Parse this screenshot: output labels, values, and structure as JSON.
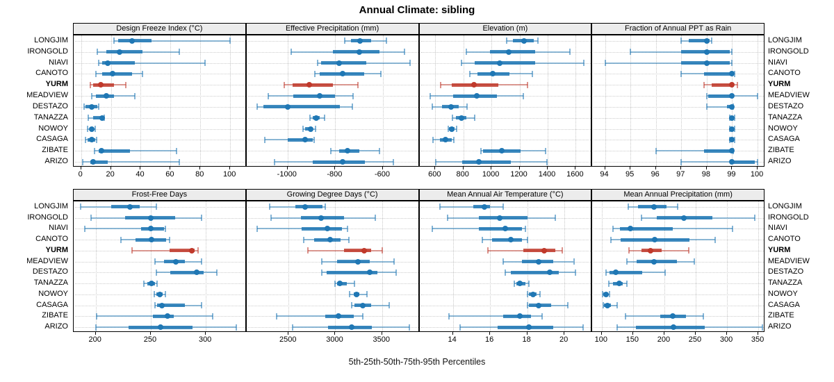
{
  "title": "Annual Climate: sibling",
  "caption": "5th-25th-50th-75th-95th Percentiles",
  "chart_data": {
    "type": "scatter",
    "subtype": "trellis of horizontal percentile interval plots (thin line = 5th-95th, thick line = 25th-75th, dot = median)",
    "title": "Annual Climate: sibling",
    "xlabel": "5th-25th-50th-75th-95th Percentiles",
    "legend_position": "none",
    "grid": "dotted",
    "percentile_labels": [
      "5th",
      "25th",
      "50th",
      "75th",
      "95th"
    ],
    "sites": [
      "LONGJIM",
      "IRONGOLD",
      "NIAVI",
      "CANOTO",
      "YURM",
      "MEADVIEW",
      "DESTAZO",
      "TANAZZA",
      "NOWOY",
      "CASAGA",
      "ZIBATE",
      "ARIZO"
    ],
    "highlight_site": "YURM",
    "colors": {
      "series": "#1f77b4",
      "highlight": "#c0392b",
      "strip_bg": "#ececec",
      "grid": "#c9c9c9",
      "panel_border": "#000000"
    },
    "panels": [
      {
        "title": "Design Freeze Index (°C)",
        "xlim": [
          -5,
          111
        ],
        "ticks": [
          0,
          20,
          40,
          60,
          80,
          100
        ],
        "values": [
          [
            22,
            25,
            34,
            47,
            100
          ],
          [
            11,
            17,
            26,
            41,
            66
          ],
          [
            12,
            14,
            18,
            36,
            83
          ],
          [
            10,
            14,
            21,
            34,
            41
          ],
          [
            6,
            8,
            13,
            22,
            30
          ],
          [
            7,
            10,
            17,
            22,
            36
          ],
          [
            2,
            3,
            7,
            11,
            12
          ],
          [
            5,
            8,
            14,
            15,
            15.5
          ],
          [
            4.5,
            5.5,
            7,
            8.5,
            9.5
          ],
          [
            3,
            4.5,
            7,
            9.5,
            10.5
          ],
          [
            9,
            12,
            13.5,
            33,
            64
          ],
          [
            1,
            6,
            8,
            18,
            66
          ]
        ]
      },
      {
        "title": "Effective Precipitation (mm)",
        "xlim": [
          -1172,
          -447
        ],
        "ticks": [
          -1000,
          -800,
          -600
        ],
        "values": [
          [
            -760,
            -735,
            -695,
            -650,
            -585
          ],
          [
            -985,
            -810,
            -700,
            -615,
            -510
          ],
          [
            -875,
            -860,
            -785,
            -670,
            -487
          ],
          [
            -885,
            -865,
            -770,
            -680,
            -610
          ],
          [
            -1015,
            -980,
            -910,
            -810,
            -705
          ],
          [
            -1080,
            -975,
            -865,
            -800,
            -725
          ],
          [
            -1127,
            -1100,
            -1000,
            -781,
            -728
          ],
          [
            -905,
            -895,
            -880,
            -865,
            -845
          ],
          [
            -936,
            -925,
            -904,
            -893,
            -883
          ],
          [
            -1095,
            -1000,
            -925,
            -895,
            -888
          ],
          [
            -820,
            -785,
            -750,
            -700,
            -615
          ],
          [
            -1055,
            -895,
            -770,
            -675,
            -555
          ]
        ]
      },
      {
        "title": "Elevation (m)",
        "xlim": [
          487,
          1718
        ],
        "ticks": [
          600,
          800,
          1000,
          1200,
          1400,
          1600
        ],
        "values": [
          [
            1110,
            1155,
            1230,
            1300,
            1330
          ],
          [
            820,
            990,
            1125,
            1310,
            1560
          ],
          [
            785,
            880,
            1060,
            1310,
            1655
          ],
          [
            845,
            900,
            1010,
            1130,
            1290
          ],
          [
            640,
            715,
            875,
            1050,
            1255
          ],
          [
            565,
            725,
            895,
            1040,
            1225
          ],
          [
            580,
            650,
            710,
            765,
            825
          ],
          [
            723,
            748,
            788,
            820,
            878
          ],
          [
            690,
            698,
            718,
            739,
            752
          ],
          [
            584,
            633,
            674,
            715,
            731
          ],
          [
            925,
            940,
            1075,
            1205,
            1385
          ],
          [
            605,
            790,
            910,
            1140,
            1395
          ]
        ]
      },
      {
        "title": "Fraction of Annual PPT as Rain",
        "xlim": [
          93.5,
          100.3
        ],
        "ticks": [
          94,
          95,
          96,
          97,
          98,
          99,
          100
        ],
        "values": [
          [
            97,
            97.3,
            98,
            98.1,
            98.2
          ],
          [
            95,
            97,
            98,
            98.9,
            99
          ],
          [
            94,
            97,
            98,
            98.9,
            99
          ],
          [
            97,
            97.9,
            99,
            99,
            99.1
          ],
          [
            97.9,
            98.2,
            99,
            99.05,
            99.2
          ],
          [
            98,
            98.05,
            99,
            99.05,
            100
          ],
          [
            98,
            98.8,
            99,
            99,
            99.05
          ],
          [
            98.9,
            99,
            99,
            99,
            99.1
          ],
          [
            98.9,
            99,
            99,
            99,
            99.1
          ],
          [
            98.9,
            99,
            99,
            99,
            99.1
          ],
          [
            96,
            97.9,
            99,
            99,
            99.05
          ],
          [
            97,
            98.9,
            99,
            99.9,
            100
          ]
        ]
      },
      {
        "title": "Frost-Free Days",
        "xlim": [
          180,
          337
        ],
        "ticks": [
          200,
          250,
          300
        ],
        "values": [
          [
            186,
            214,
            231,
            240,
            255
          ],
          [
            196,
            227,
            250,
            272,
            296
          ],
          [
            190,
            241,
            250,
            262,
            263
          ],
          [
            223,
            236,
            251,
            264,
            267
          ],
          [
            233,
            267,
            287,
            290,
            293
          ],
          [
            254,
            262,
            273,
            281,
            296
          ],
          [
            255,
            268,
            292,
            298,
            310
          ],
          [
            244,
            247,
            251,
            254,
            256
          ],
          [
            253,
            255,
            258,
            261,
            263
          ],
          [
            254,
            256,
            260,
            281,
            296
          ],
          [
            201,
            252,
            265,
            271,
            306
          ],
          [
            200,
            230,
            259,
            288,
            328
          ]
        ]
      },
      {
        "title": "Growing Degree Days (°C)",
        "xlim": [
          2050,
          3900
        ],
        "ticks": [
          2500,
          3000,
          3500
        ],
        "values": [
          [
            2300,
            2575,
            2680,
            2860,
            2890
          ],
          [
            2315,
            2630,
            2845,
            3095,
            3430
          ],
          [
            2165,
            2640,
            2915,
            3070,
            3130
          ],
          [
            2665,
            2775,
            2945,
            3055,
            3145
          ],
          [
            2705,
            3095,
            3310,
            3380,
            3505
          ],
          [
            2855,
            3020,
            3245,
            3365,
            3630
          ],
          [
            2855,
            2910,
            3365,
            3450,
            3650
          ],
          [
            3000,
            3015,
            3050,
            3120,
            3205
          ],
          [
            3155,
            3195,
            3230,
            3260,
            3340
          ],
          [
            3175,
            3205,
            3295,
            3380,
            3580
          ],
          [
            2370,
            2895,
            3035,
            3195,
            3295
          ],
          [
            2540,
            2920,
            3175,
            3390,
            3795
          ]
        ]
      },
      {
        "title": "Mean Annual Air Temperature (°C)",
        "xlim": [
          12.2,
          21.5
        ],
        "ticks": [
          14,
          16,
          18,
          20
        ],
        "values": [
          [
            13.3,
            15.1,
            15.7,
            16.0,
            16.7
          ],
          [
            13.7,
            15.4,
            16.5,
            18.0,
            19.5
          ],
          [
            12.9,
            15.4,
            16.8,
            17.7,
            17.9
          ],
          [
            15.6,
            16.1,
            17.1,
            17.7,
            18.0
          ],
          [
            15.9,
            17.8,
            18.9,
            19.5,
            19.9
          ],
          [
            16.7,
            17.7,
            18.6,
            19.4,
            20.5
          ],
          [
            16.8,
            17.1,
            19.2,
            19.7,
            20.6
          ],
          [
            17.3,
            17.4,
            17.6,
            17.9,
            18.1
          ],
          [
            18.0,
            18.1,
            18.3,
            18.5,
            18.7
          ],
          [
            18.0,
            18.1,
            18.6,
            19.3,
            20.2
          ],
          [
            13.8,
            16.7,
            17.6,
            18.2,
            18.8
          ],
          [
            14.4,
            16.4,
            18.1,
            19.4,
            21.0
          ]
        ]
      },
      {
        "title": "Mean Annual Precipitation (mm)",
        "xlim": [
          85,
          361
        ],
        "ticks": [
          100,
          150,
          200,
          250,
          300,
          350
        ],
        "values": [
          [
            142,
            158,
            183,
            204,
            221
          ],
          [
            163,
            188,
            231,
            277,
            344
          ],
          [
            118,
            129,
            146,
            213,
            309
          ],
          [
            115,
            130,
            185,
            240,
            281
          ],
          [
            144,
            163,
            178,
            196,
            239
          ],
          [
            140,
            156,
            183,
            220,
            248
          ],
          [
            107,
            112,
            123,
            165,
            201
          ],
          [
            111,
            118,
            128,
            134,
            140
          ],
          [
            101,
            103,
            107,
            110,
            113
          ],
          [
            102,
            104,
            109,
            115,
            125
          ],
          [
            138,
            194,
            213,
            235,
            262
          ],
          [
            125,
            155,
            215,
            264,
            357
          ]
        ]
      }
    ]
  }
}
